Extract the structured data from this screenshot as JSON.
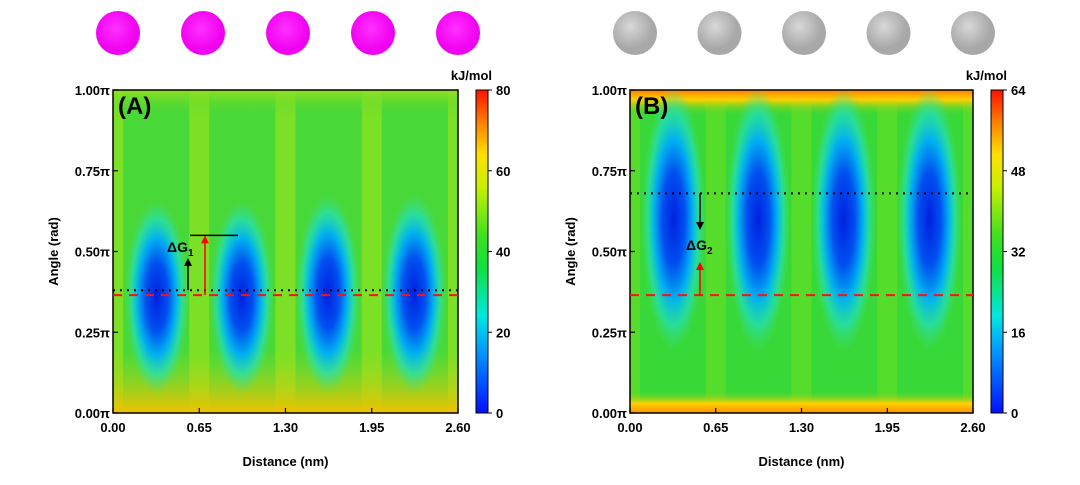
{
  "chart_data": [
    {
      "type": "heatmap",
      "panel_label": "(A)",
      "xlabel": "Distance (nm)",
      "ylabel": "Angle (rad)",
      "xlim": [
        0,
        2.6
      ],
      "ylim": [
        0,
        1
      ],
      "xticks": [
        "0.00",
        "0.65",
        "1.30",
        "1.95",
        "2.60"
      ],
      "yticks": [
        "0.00π",
        "0.25π",
        "0.50π",
        "0.75π",
        "1.00π"
      ],
      "colorbar": {
        "title": "kJ/mol",
        "range": [
          0,
          80
        ],
        "ticks": [
          "0",
          "20",
          "40",
          "60",
          "80"
        ]
      },
      "background_energy": 42,
      "minima": [
        {
          "distance": 0.33,
          "angle": 0.35,
          "angle_span": [
            0.12,
            0.6
          ]
        },
        {
          "distance": 0.97,
          "angle": 0.35,
          "angle_span": [
            0.12,
            0.6
          ]
        },
        {
          "distance": 1.62,
          "angle": 0.35,
          "angle_span": [
            0.12,
            0.62
          ]
        },
        {
          "distance": 2.27,
          "angle": 0.35,
          "angle_span": [
            0.12,
            0.62
          ]
        }
      ],
      "reference_lines": {
        "black_dotted": 0.38,
        "red_dashed": 0.365,
        "delta_g_top": 0.55
      },
      "annotation": {
        "text": "ΔG",
        "subscript": "1"
      },
      "marker_color": "#ff00ff"
    },
    {
      "type": "heatmap",
      "panel_label": "(B)",
      "xlabel": "Distance (nm)",
      "ylabel": "Angle (rad)",
      "xlim": [
        0,
        2.6
      ],
      "ylim": [
        0,
        1
      ],
      "xticks": [
        "0.00",
        "0.65",
        "1.30",
        "1.95",
        "2.60"
      ],
      "yticks": [
        "0.00π",
        "0.25π",
        "0.50π",
        "0.75π",
        "1.00π"
      ],
      "colorbar": {
        "title": "kJ/mol",
        "range": [
          0,
          64
        ],
        "ticks": [
          "0",
          "16",
          "32",
          "48",
          "64"
        ]
      },
      "background_energy": 30,
      "minima": [
        {
          "distance": 0.33,
          "angle": 0.6,
          "angle_span": [
            0.25,
            0.95
          ]
        },
        {
          "distance": 0.97,
          "angle": 0.6,
          "angle_span": [
            0.25,
            0.95
          ]
        },
        {
          "distance": 1.62,
          "angle": 0.6,
          "angle_span": [
            0.25,
            0.95
          ]
        },
        {
          "distance": 2.27,
          "angle": 0.6,
          "angle_span": [
            0.25,
            0.95
          ]
        }
      ],
      "reference_lines": {
        "black_dotted": 0.68,
        "red_dashed": 0.365
      },
      "annotation": {
        "text": "ΔG",
        "subscript": "2"
      },
      "marker_color": "#c0c0c0"
    }
  ]
}
